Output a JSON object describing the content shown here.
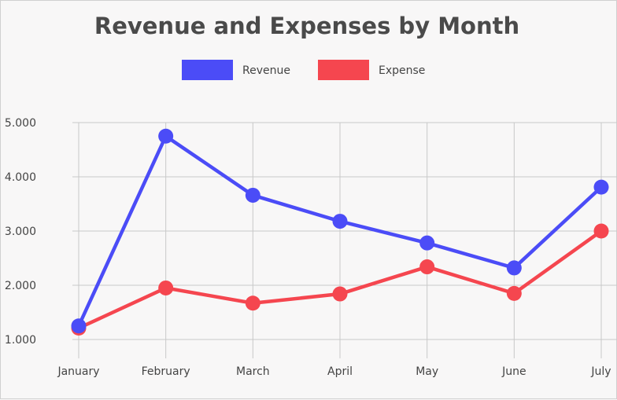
{
  "chart_data": {
    "type": "line",
    "title": "Revenue and Expenses by Month",
    "categories": [
      "January",
      "February",
      "March",
      "April",
      "May",
      "June",
      "July"
    ],
    "series": [
      {
        "name": "Revenue",
        "color": "#4b4cf7",
        "values": [
          1250,
          4750,
          3660,
          3180,
          2780,
          2320,
          3810
        ]
      },
      {
        "name": "Expense",
        "color": "#f5464f",
        "values": [
          1210,
          1950,
          1670,
          1840,
          2340,
          1850,
          3000
        ]
      }
    ],
    "ylim": [
      1000,
      5000
    ],
    "yticks": [
      1000,
      2000,
      3000,
      4000,
      5000
    ],
    "ytick_labels": [
      "1.000",
      "2.000",
      "3.000",
      "4.000",
      "5.000"
    ],
    "grid": true,
    "legend_position": "top"
  }
}
